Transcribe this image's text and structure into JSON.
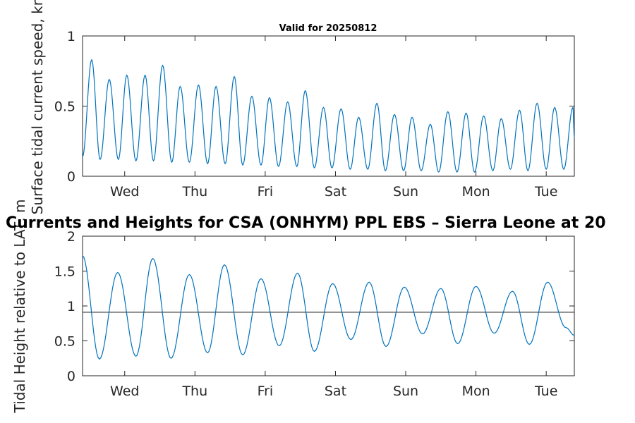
{
  "chart_data": [
    {
      "type": "line",
      "title": "Valid for 20250812",
      "ylabel": "Surface tidal current speed, kn",
      "xlabel": "",
      "xlim": [
        0,
        7
      ],
      "ylim": [
        0,
        1
      ],
      "x_ticks": [
        0.6,
        1.6,
        2.6,
        3.6,
        4.6,
        5.6,
        6.6
      ],
      "x_tick_labels": [
        "Wed",
        "Thu",
        "Fri",
        "Sat",
        "Sun",
        "Mon",
        "Tue"
      ],
      "y_ticks": [
        0,
        0.5,
        1
      ],
      "y_tick_labels": [
        "0",
        "0.5",
        "1"
      ],
      "grid": false,
      "series": [
        {
          "x": [
            0.0,
            0.13,
            0.25,
            0.38,
            0.51,
            0.63,
            0.76,
            0.89,
            1.01,
            1.14,
            1.27,
            1.39,
            1.52,
            1.65,
            1.78,
            1.9,
            2.03,
            2.16,
            2.28,
            2.41,
            2.54,
            2.66,
            2.79,
            2.92,
            3.05,
            3.17,
            3.3,
            3.43,
            3.55,
            3.68,
            3.81,
            3.93,
            4.06,
            4.19,
            4.31,
            4.44,
            4.57,
            4.69,
            4.82,
            4.95,
            5.07,
            5.2,
            5.33,
            5.46,
            5.58,
            5.71,
            5.84,
            5.96,
            6.09,
            6.22,
            6.34,
            6.47,
            6.6,
            6.72,
            6.85,
            6.98,
            7.0
          ],
          "y": [
            0.14,
            0.83,
            0.12,
            0.69,
            0.12,
            0.72,
            0.11,
            0.72,
            0.11,
            0.79,
            0.1,
            0.64,
            0.1,
            0.65,
            0.09,
            0.64,
            0.09,
            0.71,
            0.08,
            0.57,
            0.08,
            0.56,
            0.07,
            0.53,
            0.07,
            0.61,
            0.06,
            0.49,
            0.06,
            0.48,
            0.05,
            0.42,
            0.05,
            0.52,
            0.04,
            0.44,
            0.04,
            0.42,
            0.04,
            0.37,
            0.03,
            0.46,
            0.03,
            0.45,
            0.03,
            0.43,
            0.04,
            0.41,
            0.05,
            0.47,
            0.04,
            0.52,
            0.05,
            0.49,
            0.05,
            0.49,
            0.28
          ]
        }
      ]
    },
    {
      "type": "line",
      "title": "Currents and Heights for CSA (ONHYM) PPL EBS  – Sierra Leone at 20",
      "ylabel": "Tidal Height relative to LAT, m",
      "xlabel": "",
      "xlim": [
        0,
        7
      ],
      "ylim": [
        0,
        2
      ],
      "x_ticks": [
        0.6,
        1.6,
        2.6,
        3.6,
        4.6,
        5.6,
        6.6
      ],
      "x_tick_labels": [
        "Wed",
        "Thu",
        "Fri",
        "Sat",
        "Sun",
        "Mon",
        "Tue"
      ],
      "y_ticks": [
        0,
        0.5,
        1,
        1.5,
        2
      ],
      "y_tick_labels": [
        "0",
        "0.5",
        "1",
        "1.5",
        "2"
      ],
      "grid": false,
      "reference_line": 0.91,
      "series": [
        {
          "x": [
            0.0,
            0.24,
            0.5,
            0.76,
            1.0,
            1.26,
            1.52,
            1.78,
            2.02,
            2.28,
            2.54,
            2.8,
            3.06,
            3.3,
            3.56,
            3.82,
            4.08,
            4.32,
            4.58,
            4.84,
            5.1,
            5.34,
            5.6,
            5.86,
            6.12,
            6.36,
            6.62,
            6.88,
            7.0
          ],
          "y": [
            1.72,
            0.24,
            1.48,
            0.28,
            1.68,
            0.25,
            1.45,
            0.33,
            1.59,
            0.3,
            1.39,
            0.43,
            1.47,
            0.35,
            1.32,
            0.52,
            1.34,
            0.42,
            1.27,
            0.6,
            1.25,
            0.46,
            1.28,
            0.61,
            1.21,
            0.45,
            1.34,
            0.69,
            0.58
          ]
        }
      ]
    }
  ]
}
